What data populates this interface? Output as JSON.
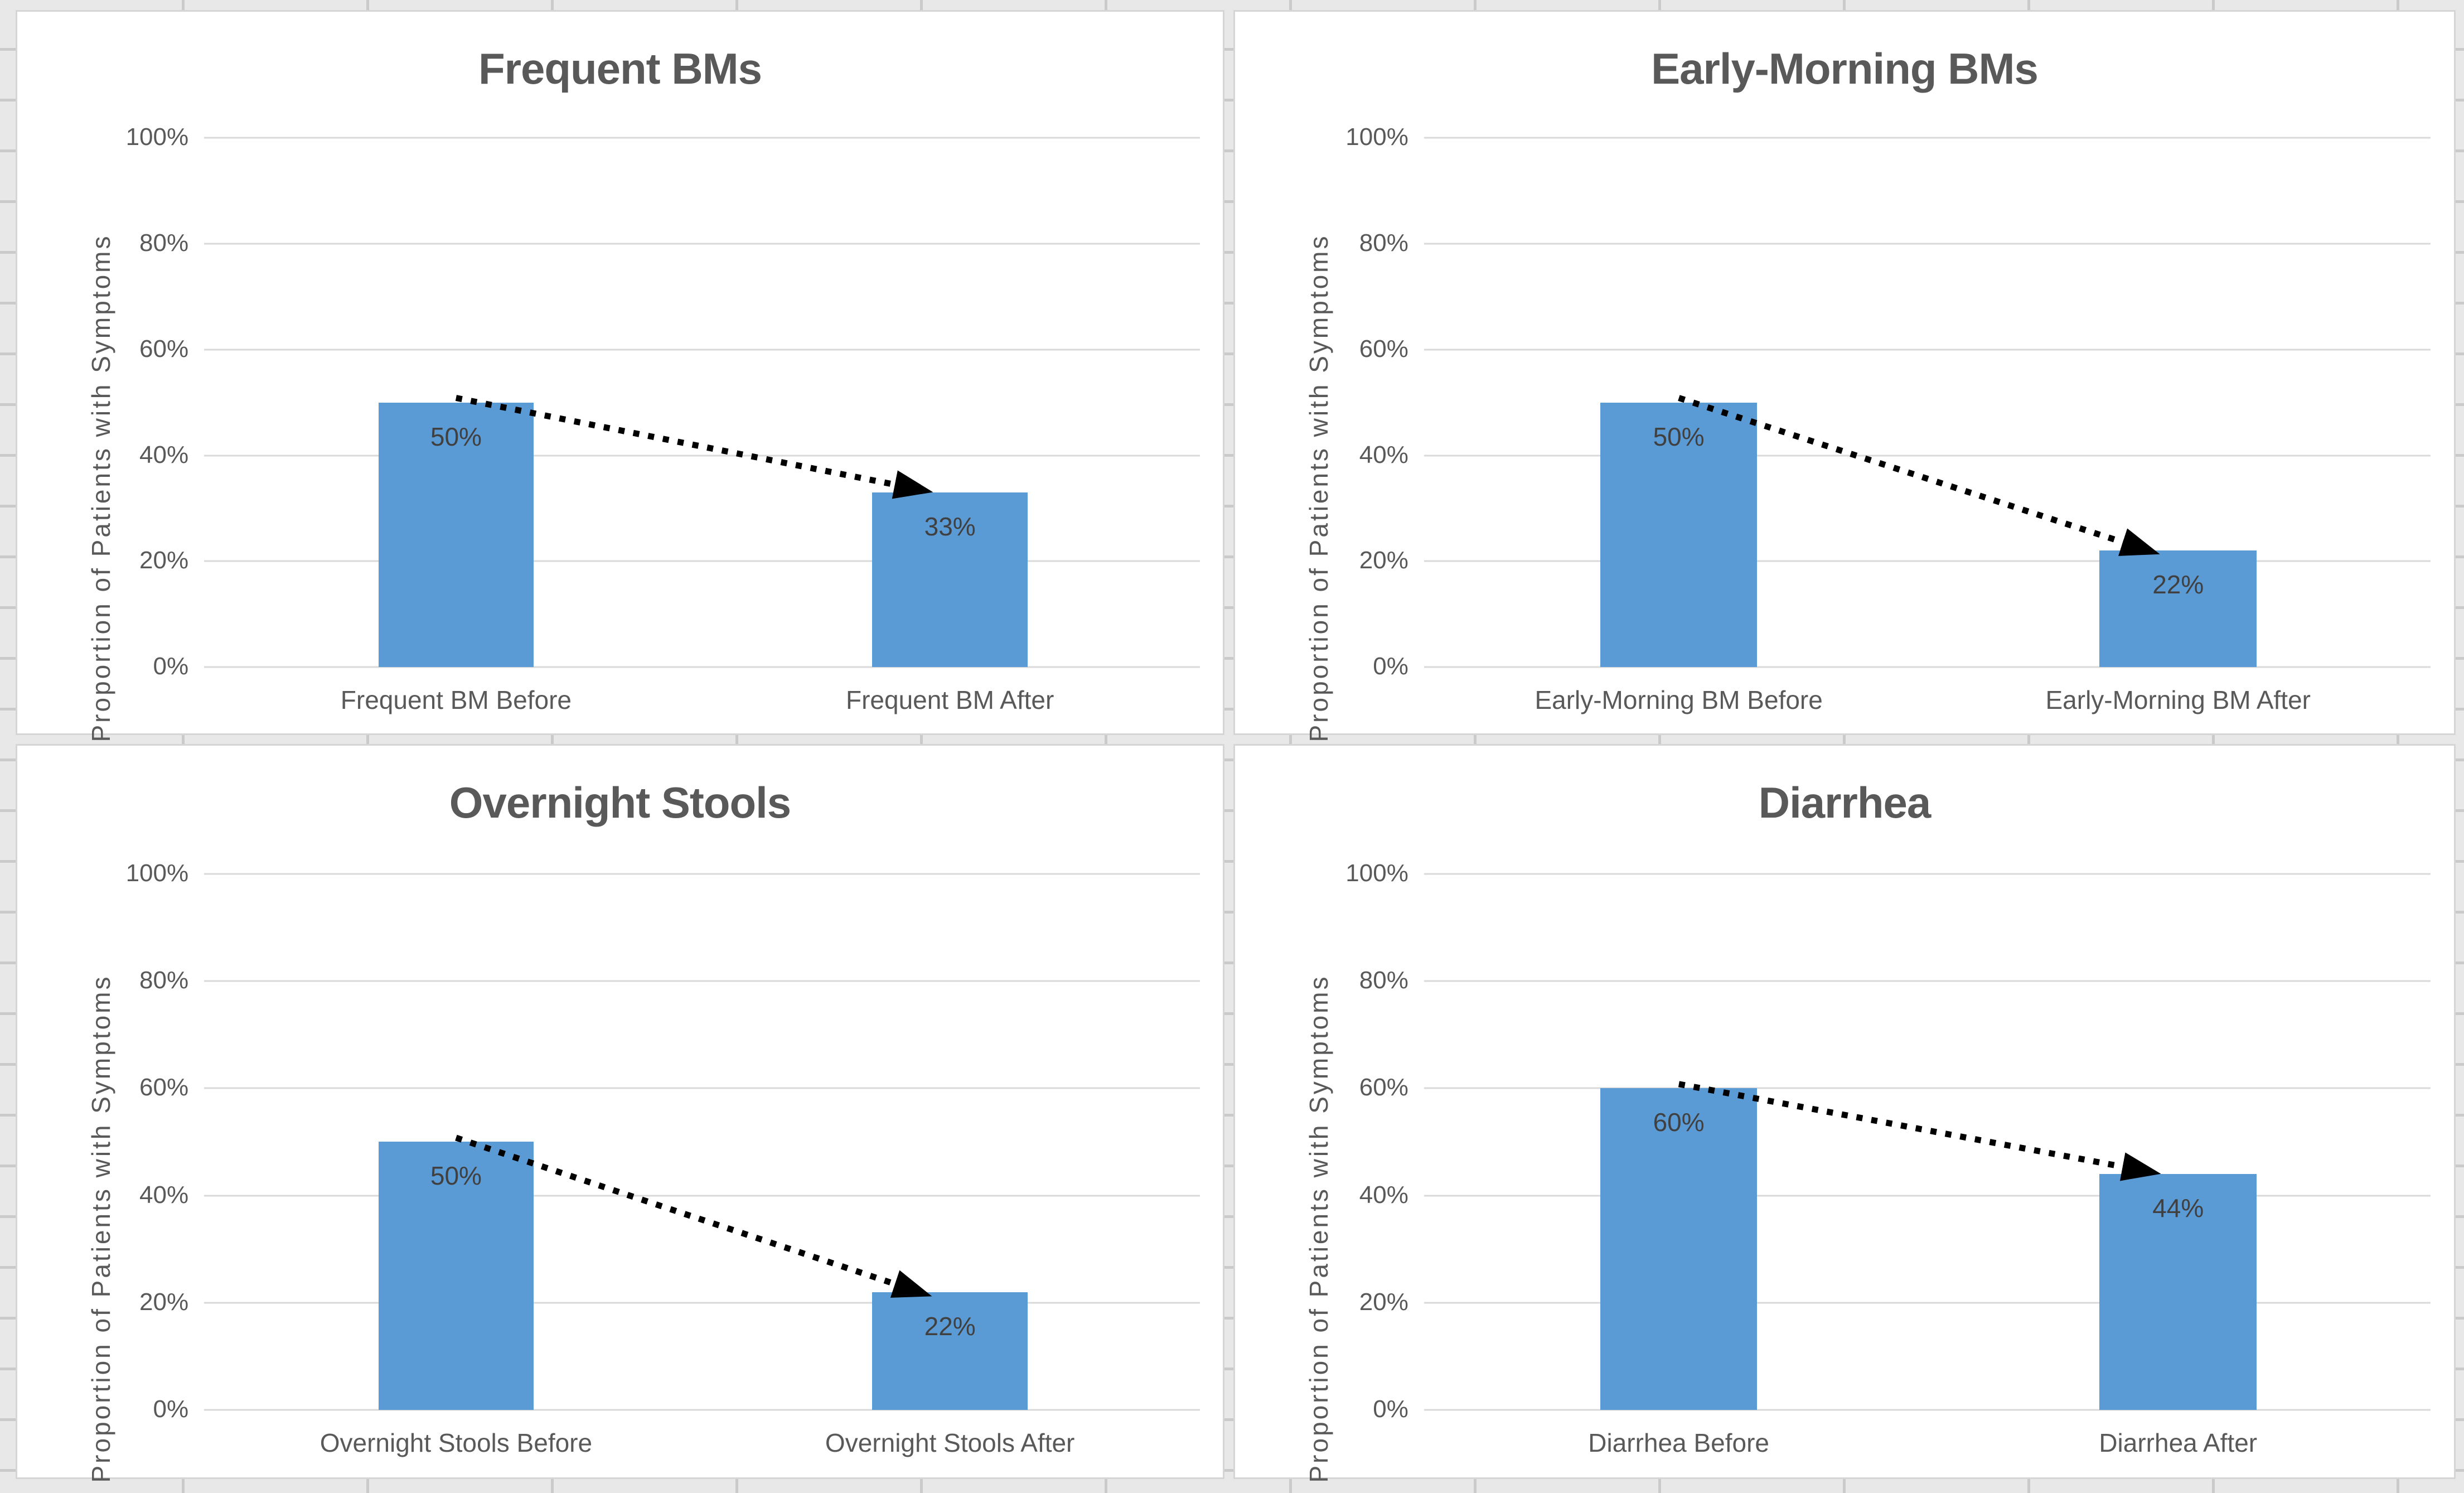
{
  "sheet": {
    "background_color": "#E9E8E8",
    "cell_line_color": "#CBCACA",
    "panel_bg": "#FFFFFF",
    "panel_border_color": "#D5D5D5"
  },
  "chart_style": {
    "bar_color": "#5B9BD5",
    "gridline_color": "#D9D9D9",
    "title_color": "#595959",
    "axis_text_color": "#595959",
    "data_label_color": "#404040",
    "arrow_color": "#000000"
  },
  "chart_data": [
    {
      "type": "bar",
      "title": "Frequent BMs",
      "ylabel": "Proportion of Patients with Symptoms",
      "xlabel": "",
      "categories": [
        "Frequent BM Before",
        "Frequent BM After"
      ],
      "values": [
        50,
        33
      ],
      "data_labels": [
        "50%",
        "33%"
      ],
      "yticks": [
        "0%",
        "20%",
        "40%",
        "60%",
        "80%",
        "100%"
      ],
      "ytick_values": [
        0,
        20,
        40,
        60,
        80,
        100
      ],
      "ylim": [
        0,
        100
      ],
      "grid": true,
      "legend": "none",
      "annotation": "dotted arrow from top of Before bar to top of After bar"
    },
    {
      "type": "bar",
      "title": "Early-Morning BMs",
      "ylabel": "Proportion of Patients with Symptoms",
      "xlabel": "",
      "categories": [
        "Early-Morning BM Before",
        "Early-Morning BM After"
      ],
      "values": [
        50,
        22
      ],
      "data_labels": [
        "50%",
        "22%"
      ],
      "yticks": [
        "0%",
        "20%",
        "40%",
        "60%",
        "80%",
        "100%"
      ],
      "ytick_values": [
        0,
        20,
        40,
        60,
        80,
        100
      ],
      "ylim": [
        0,
        100
      ],
      "grid": true,
      "legend": "none",
      "annotation": "dotted arrow from top of Before bar to top of After bar"
    },
    {
      "type": "bar",
      "title": "Overnight Stools",
      "ylabel": "Proportion of Patients with Symptoms",
      "xlabel": "",
      "categories": [
        "Overnight Stools Before",
        "Overnight Stools After"
      ],
      "values": [
        50,
        22
      ],
      "data_labels": [
        "50%",
        "22%"
      ],
      "yticks": [
        "0%",
        "20%",
        "40%",
        "60%",
        "80%",
        "100%"
      ],
      "ytick_values": [
        0,
        20,
        40,
        60,
        80,
        100
      ],
      "ylim": [
        0,
        100
      ],
      "grid": true,
      "legend": "none",
      "annotation": "dotted arrow from top of Before bar to top of After bar"
    },
    {
      "type": "bar",
      "title": "Diarrhea",
      "ylabel": "Proportion of Patients with Symptoms",
      "xlabel": "",
      "categories": [
        "Diarrhea Before",
        "Diarrhea After"
      ],
      "values": [
        60,
        44
      ],
      "data_labels": [
        "60%",
        "44%"
      ],
      "yticks": [
        "0%",
        "20%",
        "40%",
        "60%",
        "80%",
        "100%"
      ],
      "ytick_values": [
        0,
        20,
        40,
        60,
        80,
        100
      ],
      "ylim": [
        0,
        100
      ],
      "grid": true,
      "legend": "none",
      "annotation": "dotted arrow from top of Before bar to top of After bar"
    }
  ]
}
